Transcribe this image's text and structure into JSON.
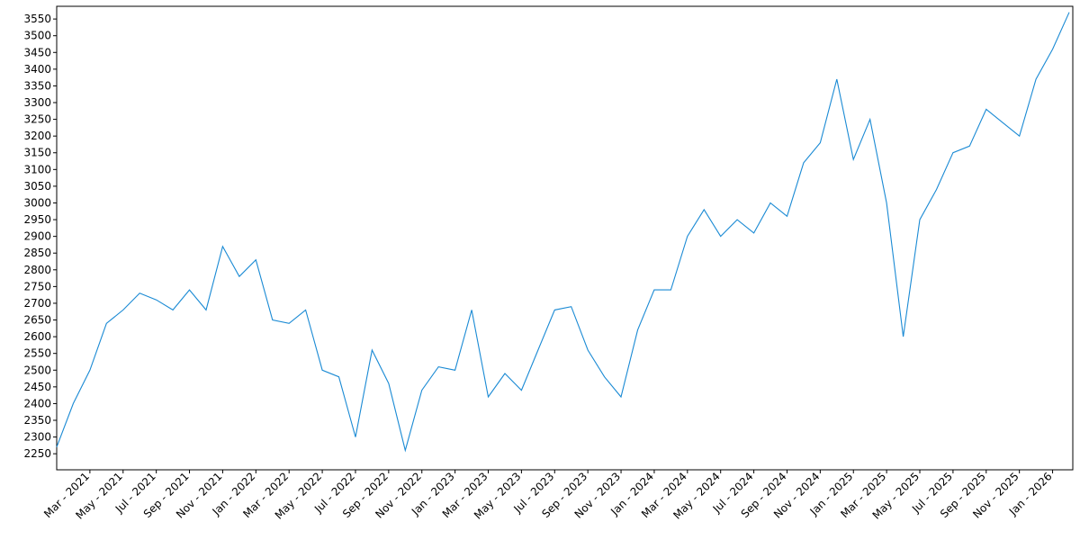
{
  "chart_data": {
    "type": "line",
    "color": "#1a8ad4",
    "grid": false,
    "xlim": [
      "2021-01",
      "2026-02"
    ],
    "xticks": [
      {
        "value": "2021-03",
        "label": "Mar - 2021"
      },
      {
        "value": "2021-05",
        "label": "May - 2021"
      },
      {
        "value": "2021-07",
        "label": "Jul - 2021"
      },
      {
        "value": "2021-09",
        "label": "Sep - 2021"
      },
      {
        "value": "2021-11",
        "label": "Nov - 2021"
      },
      {
        "value": "2022-01",
        "label": "Jan - 2022"
      },
      {
        "value": "2022-03",
        "label": "Mar - 2022"
      },
      {
        "value": "2022-05",
        "label": "May - 2022"
      },
      {
        "value": "2022-07",
        "label": "Jul - 2022"
      },
      {
        "value": "2022-09",
        "label": "Sep - 2022"
      },
      {
        "value": "2022-11",
        "label": "Nov - 2022"
      },
      {
        "value": "2023-01",
        "label": "Jan - 2023"
      },
      {
        "value": "2023-03",
        "label": "Mar - 2023"
      },
      {
        "value": "2023-05",
        "label": "May - 2023"
      },
      {
        "value": "2023-07",
        "label": "Jul - 2023"
      },
      {
        "value": "2023-09",
        "label": "Sep - 2023"
      },
      {
        "value": "2023-11",
        "label": "Nov - 2023"
      },
      {
        "value": "2024-01",
        "label": "Jan - 2024"
      },
      {
        "value": "2024-03",
        "label": "Mar - 2024"
      },
      {
        "value": "2024-05",
        "label": "May - 2024"
      },
      {
        "value": "2024-07",
        "label": "Jul - 2024"
      },
      {
        "value": "2024-09",
        "label": "Sep - 2024"
      },
      {
        "value": "2024-11",
        "label": "Nov - 2024"
      },
      {
        "value": "2025-01",
        "label": "Jan - 2025"
      },
      {
        "value": "2025-03",
        "label": "Mar - 2025"
      },
      {
        "value": "2025-05",
        "label": "May - 2025"
      },
      {
        "value": "2025-07",
        "label": "Jul - 2025"
      },
      {
        "value": "2025-09",
        "label": "Sep - 2025"
      },
      {
        "value": "2025-11",
        "label": "Nov - 2025"
      },
      {
        "value": "2026-01",
        "label": "Jan - 2026"
      }
    ],
    "ylim": [
      2202,
      3588
    ],
    "yticks": [
      2250,
      2300,
      2350,
      2400,
      2450,
      2500,
      2550,
      2600,
      2650,
      2700,
      2750,
      2800,
      2850,
      2900,
      2950,
      3000,
      3050,
      3100,
      3150,
      3200,
      3250,
      3300,
      3350,
      3400,
      3450,
      3500,
      3550
    ],
    "x": [
      "2021-01",
      "2021-02",
      "2021-03",
      "2021-04",
      "2021-05",
      "2021-06",
      "2021-07",
      "2021-08",
      "2021-09",
      "2021-10",
      "2021-11",
      "2021-12",
      "2022-01",
      "2022-02",
      "2022-03",
      "2022-04",
      "2022-05",
      "2022-06",
      "2022-07",
      "2022-08",
      "2022-09",
      "2022-10",
      "2022-11",
      "2022-12",
      "2023-01",
      "2023-02",
      "2023-03",
      "2023-04",
      "2023-05",
      "2023-06",
      "2023-07",
      "2023-08",
      "2023-09",
      "2023-10",
      "2023-11",
      "2023-12",
      "2024-01",
      "2024-02",
      "2024-03",
      "2024-04",
      "2024-05",
      "2024-06",
      "2024-07",
      "2024-08",
      "2024-09",
      "2024-10",
      "2024-11",
      "2024-12",
      "2025-01",
      "2025-02",
      "2025-03",
      "2025-04",
      "2025-05",
      "2025-06",
      "2025-07",
      "2025-08",
      "2025-09",
      "2025-10",
      "2025-11",
      "2025-12",
      "2026-01",
      "2026-02"
    ],
    "values": [
      2270,
      2400,
      2500,
      2640,
      2680,
      2730,
      2710,
      2680,
      2740,
      2680,
      2870,
      2780,
      2830,
      2650,
      2640,
      2680,
      2500,
      2480,
      2300,
      2560,
      2460,
      2260,
      2440,
      2510,
      2500,
      2680,
      2420,
      2490,
      2440,
      2560,
      2680,
      2690,
      2560,
      2480,
      2420,
      2620,
      2740,
      2740,
      2900,
      2980,
      2900,
      2950,
      2910,
      3000,
      2960,
      3120,
      3180,
      3370,
      3130,
      3250,
      3000,
      2600,
      2950,
      3040,
      3150,
      3170,
      3280,
      3240,
      3200,
      3370,
      3460,
      3570
    ]
  }
}
